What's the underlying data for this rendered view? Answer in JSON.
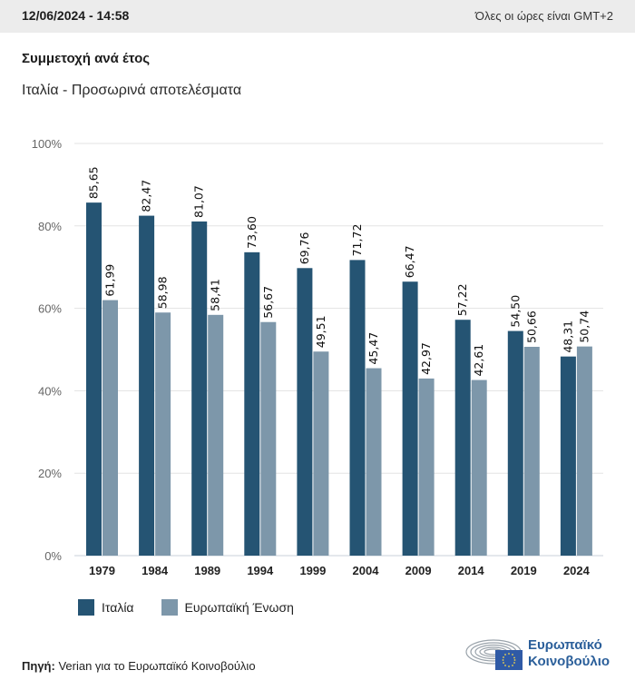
{
  "header": {
    "datetime": "12/06/2024 - 14:58",
    "timezone_note": "Όλες οι ώρες είναι GMT+2"
  },
  "title": "Συμμετοχή ανά έτος",
  "subtitle": "Ιταλία - Προσωρινά αποτελέσματα",
  "colors": {
    "italy": "#255473",
    "eu": "#7d97aa",
    "grid": "#e3e3e3",
    "axis_text": "#666666"
  },
  "chart_data": {
    "type": "bar",
    "title": "Συμμετοχή ανά έτος",
    "subtitle": "Ιταλία - Προσωρινά αποτελέσματα",
    "xlabel": "",
    "ylabel": "",
    "categories": [
      "1979",
      "1984",
      "1989",
      "1994",
      "1999",
      "2004",
      "2009",
      "2014",
      "2019",
      "2024"
    ],
    "series": [
      {
        "name": "Ιταλία",
        "values": [
          85.65,
          82.47,
          81.07,
          73.6,
          69.76,
          71.72,
          66.47,
          57.22,
          54.5,
          48.31
        ],
        "labels": [
          "85,65",
          "82,47",
          "81,07",
          "73,60",
          "69,76",
          "71,72",
          "66,47",
          "57,22",
          "54,50",
          "48,31"
        ]
      },
      {
        "name": "Ευρωπαϊκή Ένωση",
        "values": [
          61.99,
          58.98,
          58.41,
          56.67,
          49.51,
          45.47,
          42.97,
          42.61,
          50.66,
          50.74
        ],
        "labels": [
          "61,99",
          "58,98",
          "58,41",
          "56,67",
          "49,51",
          "45,47",
          "42,97",
          "42,61",
          "50,66",
          "50,74"
        ]
      }
    ],
    "ylim": [
      0,
      100
    ],
    "yticks": [
      0,
      20,
      40,
      60,
      80,
      100
    ],
    "ytick_labels": [
      "0%",
      "20%",
      "40%",
      "60%",
      "80%",
      "100%"
    ],
    "grid": true,
    "legend_position": "bottom-left"
  },
  "legend": {
    "items": [
      {
        "label": "Ιταλία"
      },
      {
        "label": "Ευρωπαϊκή Ένωση"
      }
    ]
  },
  "footer": {
    "source_label": "Πηγή:",
    "source_text": " Verian για το Ευρωπαϊκό Κοινοβούλιο",
    "logo_line1": "Ευρωπαϊκό",
    "logo_line2": "Κοινοβούλιο"
  }
}
